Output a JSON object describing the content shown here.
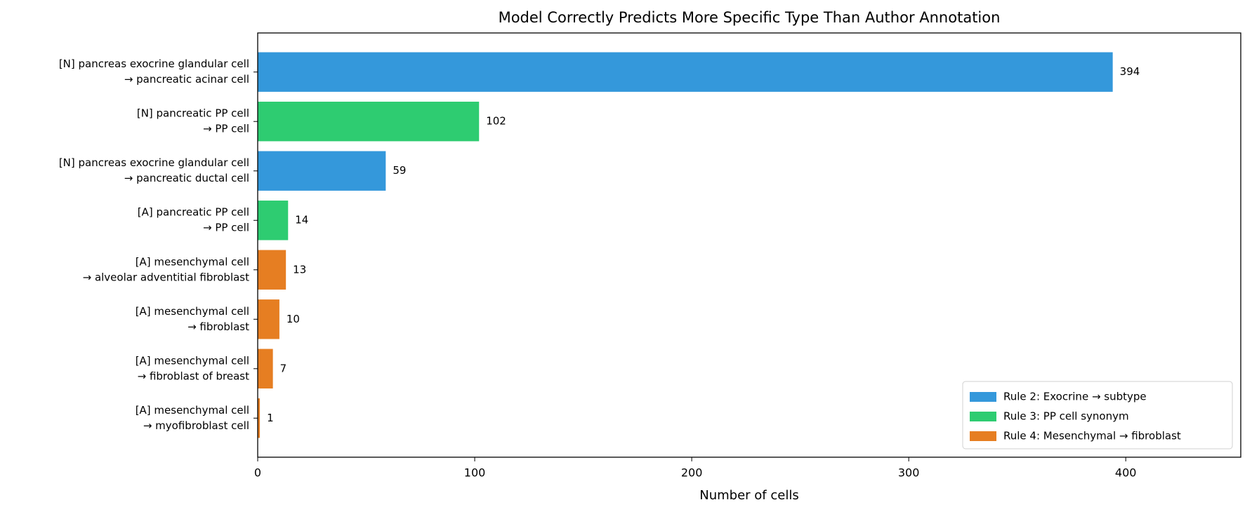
{
  "chart_data": {
    "type": "barh",
    "title": "Model Correctly Predicts More Specific Type Than Author Annotation",
    "xlabel": "Number of cells",
    "categories": [
      [
        "[N] pancreas exocrine glandular cell",
        "→ pancreatic acinar cell"
      ],
      [
        "[N] pancreatic PP cell",
        "→ PP cell"
      ],
      [
        "[N] pancreas exocrine glandular cell",
        "→ pancreatic ductal cell"
      ],
      [
        "[A] pancreatic PP cell",
        "→ PP cell"
      ],
      [
        "[A] mesenchymal cell",
        "→ alveolar adventitial fibroblast"
      ],
      [
        "[A] mesenchymal cell",
        "→ fibroblast"
      ],
      [
        "[A] mesenchymal cell",
        "→ fibroblast of breast"
      ],
      [
        "[A] mesenchymal cell",
        "→ myofibroblast cell"
      ]
    ],
    "series": [
      {
        "name": "Rule 2: Exocrine → subtype",
        "color": "#3498db",
        "values": [
          394,
          null,
          59,
          null,
          null,
          null,
          null,
          null
        ]
      },
      {
        "name": "Rule 3: PP cell synonym",
        "color": "#2ecc71",
        "values": [
          null,
          102,
          null,
          14,
          null,
          null,
          null,
          null
        ]
      },
      {
        "name": "Rule 4: Mesenchymal → fibroblast",
        "color": "#e67e22",
        "values": [
          null,
          null,
          null,
          null,
          13,
          10,
          7,
          1
        ]
      }
    ],
    "xlim": [
      0,
      453
    ],
    "xticks": [
      0,
      100,
      200,
      300,
      400
    ],
    "legend": "lower right"
  }
}
